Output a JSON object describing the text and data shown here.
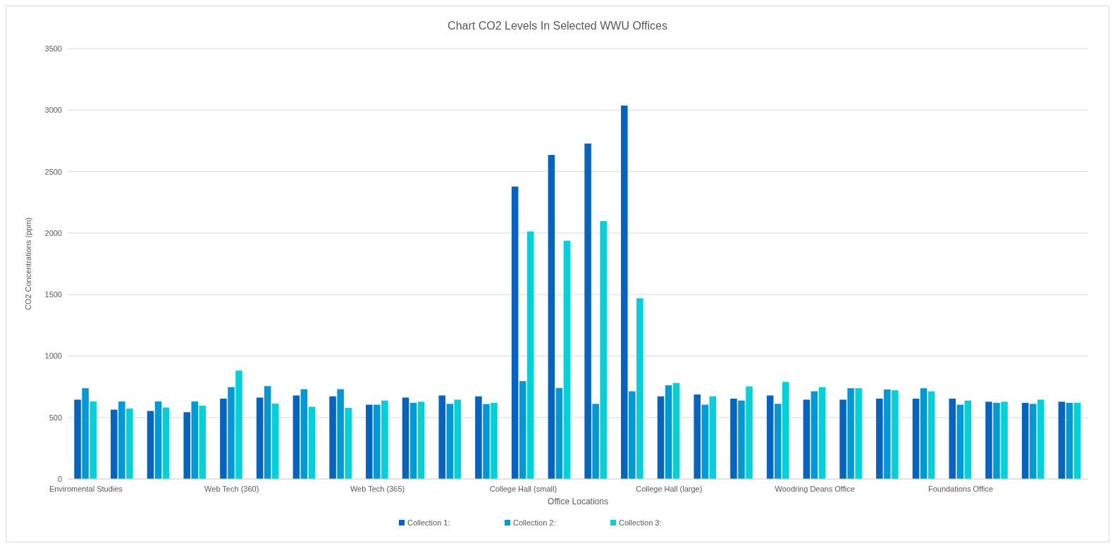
{
  "chart_data": {
    "type": "bar",
    "title": "Chart CO2 Levels In Selected WWU Offices",
    "xlabel": "Office Locations",
    "ylabel": "CO2 Concentrations (ppm)",
    "categories": [
      "Enviromental Studies",
      null,
      null,
      null,
      "Web Tech (360)",
      null,
      null,
      null,
      "Web Tech (365)",
      null,
      null,
      null,
      "College Hall (small)",
      null,
      null,
      null,
      "College Hall (large)",
      null,
      null,
      null,
      "Woodring Deans Office",
      null,
      null,
      null,
      "Foundations Office",
      null,
      null,
      null
    ],
    "series": [
      {
        "name": "Collection 1:",
        "color": "#0563c1",
        "values": [
          645,
          564,
          553,
          543,
          653,
          662,
          679,
          672,
          604,
          662,
          679,
          672,
          2378,
          2635,
          2728,
          3037,
          672,
          687,
          653,
          679,
          645,
          645,
          653,
          653,
          653,
          628,
          619,
          628
        ]
      },
      {
        "name": "Collection 2:",
        "color": "#0099d8",
        "values": [
          738,
          630,
          630,
          630,
          747,
          755,
          730,
          730,
          604,
          619,
          611,
          609,
          796,
          740,
          611,
          713,
          762,
          604,
          638,
          611,
          713,
          738,
          728,
          738,
          604,
          619,
          611,
          619
        ]
      },
      {
        "name": "Collection 3:",
        "color": "#00d1da",
        "values": [
          630,
          572,
          581,
          596,
          881,
          613,
          587,
          579,
          638,
          628,
          645,
          619,
          2013,
          1938,
          2097,
          1470,
          781,
          672,
          753,
          789,
          747,
          738,
          721,
          713,
          638,
          628,
          645,
          619
        ]
      }
    ],
    "ylim": [
      0,
      3500
    ],
    "yticks": [
      0,
      500,
      1000,
      1500,
      2000,
      2500,
      3000,
      3500
    ],
    "grid": "y",
    "legend": "bottom"
  }
}
